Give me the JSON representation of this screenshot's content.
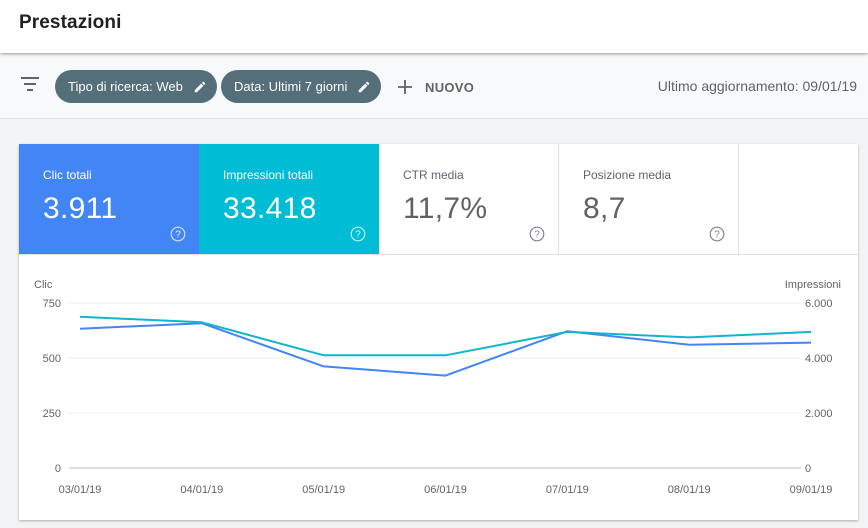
{
  "header": {
    "title": "Prestazioni"
  },
  "filters": {
    "chips": [
      {
        "label": "Tipo di ricerca: Web",
        "icon": "pencil-icon"
      },
      {
        "label": "Data: Ultimi 7 giorni",
        "icon": "pencil-icon"
      }
    ],
    "new_label": "NUOVO",
    "updated": "Ultimo aggiornamento: 09/01/19"
  },
  "metrics": [
    {
      "label": "Clic totali",
      "value": "3.911",
      "color": "#4285f4"
    },
    {
      "label": "Impressioni totali",
      "value": "33.418",
      "color": "#00bcd4"
    },
    {
      "label": "CTR media",
      "value": "11,7%"
    },
    {
      "label": "Posizione media",
      "value": "8,7"
    }
  ],
  "chart_data": {
    "type": "line",
    "x": [
      "03/01/19",
      "04/01/19",
      "05/01/19",
      "06/01/19",
      "07/01/19",
      "08/01/19",
      "09/01/19"
    ],
    "left_axis": {
      "label": "Clic",
      "ticks": [
        "0",
        "250",
        "500",
        "750"
      ],
      "range": [
        0,
        750
      ]
    },
    "right_axis": {
      "label": "Impressioni",
      "ticks": [
        "0",
        "2.000",
        "4.000",
        "6.000"
      ],
      "range": [
        0,
        6000
      ]
    },
    "series": [
      {
        "name": "Clic",
        "axis": "left",
        "color": "#4285f4",
        "values": [
          633,
          658,
          462,
          420,
          622,
          560,
          570
        ]
      },
      {
        "name": "Impressioni",
        "axis": "right",
        "color": "#12b5cb",
        "values": [
          5500,
          5300,
          4100,
          4100,
          4950,
          4750,
          4950
        ]
      }
    ],
    "grid": true
  }
}
